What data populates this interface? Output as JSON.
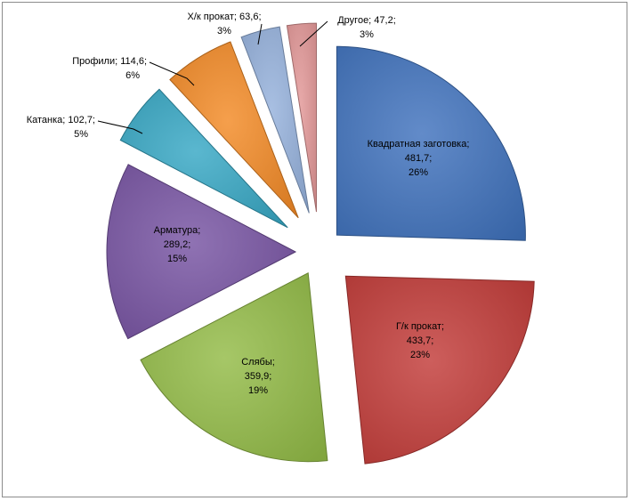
{
  "chart_data": {
    "type": "pie",
    "exploded": true,
    "legend": "none",
    "slices": [
      {
        "label": "Квадратная заготовка",
        "value_text": "481,7",
        "value": 481.7,
        "percent_text": "26%",
        "color": "#3f72bd"
      },
      {
        "label": "Г/к прокат",
        "value_text": "433,7",
        "value": 433.7,
        "percent_text": "23%",
        "color": "#c23b38"
      },
      {
        "label": "Слябы",
        "value_text": "359,9",
        "value": 359.9,
        "percent_text": "19%",
        "color": "#93bb46"
      },
      {
        "label": "Арматура",
        "value_text": "289,2",
        "value": 289.2,
        "percent_text": "15%",
        "color": "#7753a2"
      },
      {
        "label": "Катанка",
        "value_text": "102,7",
        "value": 102.7,
        "percent_text": "5%",
        "color": "#36a7c4"
      },
      {
        "label": "Профили",
        "value_text": "114,6",
        "value": 114.6,
        "percent_text": "6%",
        "color": "#f38a25"
      },
      {
        "label": "Х/к прокат",
        "value_text": "63,6",
        "value": 63.6,
        "percent_text": "3%",
        "color": "#95b1dc"
      },
      {
        "label": "Другое",
        "value_text": "47,2",
        "value": 47.2,
        "percent_text": "3%",
        "color": "#e39797"
      }
    ]
  }
}
